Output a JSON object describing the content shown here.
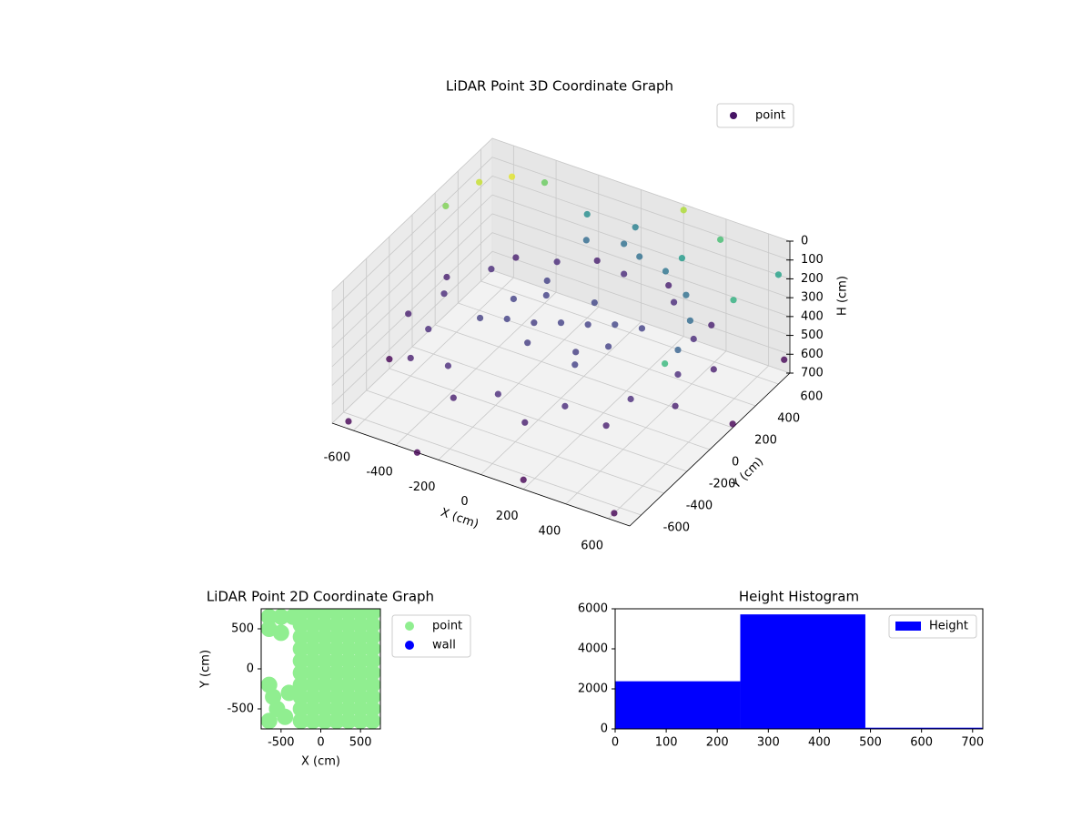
{
  "chart_data": [
    {
      "type": "scatter3d",
      "title": "LiDAR Point 3D Coordinate Graph",
      "x_label": "X (cm)",
      "y_label": "Y (cm)",
      "z_label": "H (cm)",
      "xlim": [
        -700,
        700
      ],
      "ylim": [
        -700,
        700
      ],
      "zlim": [
        700,
        0
      ],
      "xticks": [
        -600,
        -400,
        -200,
        0,
        200,
        400,
        600
      ],
      "yticks": [
        -600,
        -400,
        -200,
        0,
        200,
        400,
        600
      ],
      "zticks": [
        0,
        100,
        200,
        300,
        400,
        500,
        600,
        700
      ],
      "grid": true,
      "series": [
        {
          "name": "point",
          "colormap": "viridis",
          "x": [
            0,
            100,
            -100,
            200,
            -200,
            150,
            -150,
            250,
            -250,
            50,
            -50,
            300,
            -300,
            200,
            -200,
            100,
            250,
            400,
            500,
            550,
            0,
            -150,
            550,
            476,
            275,
            0,
            -275,
            -476,
            -550,
            -476,
            -275,
            0,
            275,
            476,
            628,
            460,
            168,
            -168,
            -460,
            -628,
            -628,
            -460,
            -168,
            168,
            460,
            628,
            -600,
            -650,
            -500,
            -400,
            200,
            400,
            650,
            700,
            -200,
            300,
            650,
            0,
            -700,
            -300,
            600,
            700,
            700,
            -650,
            200
          ],
          "y": [
            0,
            50,
            -50,
            100,
            -100,
            -150,
            150,
            -50,
            50,
            200,
            -200,
            150,
            -150,
            -250,
            250,
            500,
            450,
            350,
            200,
            0,
            550,
            500,
            0,
            275,
            476,
            550,
            476,
            275,
            0,
            -275,
            -476,
            -550,
            -476,
            -275,
            168,
            460,
            628,
            628,
            460,
            168,
            -168,
            -460,
            -628,
            -628,
            -460,
            -168,
            400,
            200,
            500,
            600,
            700,
            650,
            300,
            600,
            600,
            500,
            -300,
            650,
            -200,
            -700,
            -650,
            200,
            650,
            -650,
            -700
          ],
          "z": [
            300,
            300,
            310,
            290,
            300,
            310,
            300,
            300,
            300,
            290,
            310,
            300,
            305,
            300,
            300,
            200,
            190,
            200,
            210,
            230,
            200,
            210,
            360,
            360,
            360,
            360,
            360,
            360,
            360,
            360,
            360,
            360,
            360,
            360,
            400,
            400,
            400,
            400,
            400,
            400,
            400,
            400,
            400,
            400,
            400,
            400,
            20,
            50,
            10,
            60,
            30,
            80,
            100,
            120,
            150,
            130,
            90,
            170,
            650,
            700,
            700,
            680,
            600,
            700,
            650
          ]
        }
      ]
    },
    {
      "type": "scatter",
      "title": "LiDAR Point 2D Coordinate Graph",
      "x_label": "X (cm)",
      "y_label": "Y (cm)",
      "xlim": [
        -750,
        750
      ],
      "ylim": [
        -750,
        750
      ],
      "xticks": [
        -500,
        0,
        500
      ],
      "yticks": [
        -500,
        0,
        500
      ],
      "series": [
        {
          "name": "point",
          "color": "#90ee90",
          "x": [
            -250,
            -250,
            -250,
            -250,
            -250,
            -250,
            -250,
            -250,
            -250,
            -250,
            -100,
            -100,
            -100,
            -100,
            -100,
            -100,
            -100,
            -100,
            -100,
            -100,
            50,
            50,
            50,
            50,
            50,
            50,
            50,
            50,
            50,
            50,
            200,
            200,
            200,
            200,
            200,
            200,
            200,
            200,
            200,
            200,
            350,
            350,
            350,
            350,
            350,
            350,
            350,
            350,
            350,
            350,
            500,
            500,
            500,
            500,
            500,
            500,
            500,
            500,
            500,
            500,
            650,
            650,
            650,
            650,
            650,
            650,
            650,
            650,
            650,
            650,
            -650,
            -500,
            -350,
            -650,
            -500,
            -600,
            -550,
            -650,
            -450,
            -400,
            -650
          ],
          "y": [
            -650,
            -500,
            -350,
            -200,
            -50,
            100,
            250,
            400,
            550,
            700,
            -650,
            -500,
            -350,
            -200,
            -50,
            100,
            250,
            400,
            550,
            700,
            -650,
            -500,
            -350,
            -200,
            -50,
            100,
            250,
            400,
            550,
            700,
            -650,
            -500,
            -350,
            -200,
            -50,
            100,
            250,
            400,
            550,
            700,
            -650,
            -500,
            -350,
            -200,
            -50,
            100,
            250,
            400,
            550,
            700,
            -650,
            -500,
            -350,
            -200,
            -50,
            100,
            250,
            400,
            550,
            700,
            -650,
            -500,
            -350,
            -200,
            -50,
            100,
            250,
            400,
            550,
            700,
            650,
            650,
            650,
            500,
            450,
            -350,
            -500,
            -650,
            -600,
            -300,
            -200
          ]
        },
        {
          "name": "wall",
          "color": "#0000ff",
          "x": [],
          "y": []
        }
      ]
    },
    {
      "type": "histogram",
      "title": "Height Histogram",
      "bins": [
        0,
        245,
        490,
        735
      ],
      "counts": [
        2380,
        5720,
        60
      ],
      "xlim": [
        0,
        720
      ],
      "ylim": [
        0,
        6000
      ],
      "xticks": [
        0,
        100,
        200,
        300,
        400,
        500,
        600,
        700
      ],
      "yticks": [
        0,
        2000,
        4000,
        6000
      ],
      "series_name": "Height",
      "color": "#0000ff"
    }
  ]
}
